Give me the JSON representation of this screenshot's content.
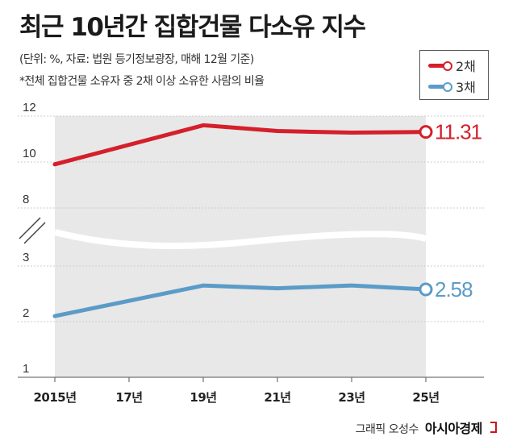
{
  "header": {
    "title": "최근 10년간 집합건물 다소유 지수",
    "subtitle": "(단위: %, 자료: 법원 등기정보광장, 매해 12월 기준)",
    "note": "*전체 집합건물 소유자 중 2채 이상 소유한 사람의 비율"
  },
  "legend": {
    "items": [
      {
        "label": "2채",
        "color": "#d4202b"
      },
      {
        "label": "3채",
        "color": "#5b9bc8"
      }
    ]
  },
  "chart_data": {
    "type": "line",
    "x": [
      "2015년",
      "17년",
      "19년",
      "21년",
      "23년",
      "25년"
    ],
    "axis_break": "between 8 and 3",
    "y_ticks_upper": [
      "12",
      "10",
      "8"
    ],
    "y_ticks_lower": [
      "3",
      "2",
      "1"
    ],
    "series": [
      {
        "name": "2채",
        "color": "#d4202b",
        "values": [
          9.9,
          null,
          11.6,
          11.35,
          11.28,
          11.31
        ],
        "x_index": [
          0,
          1,
          2,
          3,
          4,
          5
        ],
        "end_label": "11.31"
      },
      {
        "name": "3채",
        "color": "#5b9bc8",
        "values": [
          2.1,
          null,
          2.65,
          2.6,
          2.65,
          2.58
        ],
        "x_index": [
          0,
          1,
          2,
          3,
          4,
          5
        ],
        "end_label": "2.58"
      }
    ],
    "grid": true,
    "background": "#e8e8e8"
  },
  "credit": {
    "graphic": "그래픽 오성수",
    "brand": "아시아경제"
  }
}
